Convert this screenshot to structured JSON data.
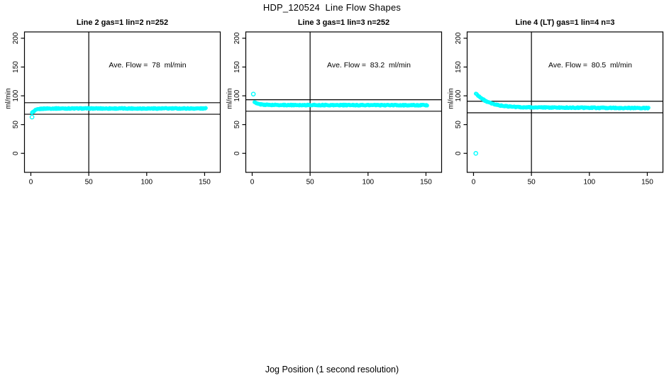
{
  "page": {
    "title": "HDP_120524  Line Flow Shapes",
    "xlabel": "Jog Position (1 second resolution)",
    "background_color": "#FFFFFF",
    "marker_color": "#00FFFF",
    "line_color": "#000000"
  },
  "chart_data": [
    {
      "type": "scatter",
      "title": "Line 2 gas=1 lin=2 n=252",
      "annotation": "Ave. Flow =  78  ml/min",
      "ave_flow_ml_min": 78,
      "n_label": 252,
      "ylabel": "ml/min",
      "x_ticks": [
        0,
        50,
        100,
        150
      ],
      "y_ticks": [
        0,
        50,
        100,
        150,
        200
      ],
      "xlim": [
        -5.5,
        163.5
      ],
      "ylim": [
        -33,
        211
      ],
      "grid": false,
      "vline_x": 50,
      "hlines": [
        88,
        68
      ],
      "x_range": [
        1,
        151
      ],
      "approx_point_count": 252,
      "profile": [
        [
          2,
          71.5
        ],
        [
          3,
          73.5
        ],
        [
          4,
          75
        ],
        [
          6,
          76.5
        ],
        [
          9,
          77.5
        ],
        [
          14,
          78
        ],
        [
          151,
          78
        ]
      ],
      "outliers": [
        [
          1,
          63
        ]
      ]
    },
    {
      "type": "scatter",
      "title": "Line 3 gas=1 lin=3 n=252",
      "annotation": "Ave. Flow =  83.2  ml/min",
      "ave_flow_ml_min": 83.2,
      "n_label": 252,
      "ylabel": "ml/min",
      "x_ticks": [
        0,
        50,
        100,
        150
      ],
      "y_ticks": [
        0,
        50,
        100,
        150,
        200
      ],
      "xlim": [
        -5.5,
        163.5
      ],
      "ylim": [
        -33,
        211
      ],
      "grid": false,
      "vline_x": 50,
      "hlines": [
        93.2,
        73.2
      ],
      "x_range": [
        2,
        151
      ],
      "approx_point_count": 252,
      "profile": [
        [
          2,
          89
        ],
        [
          3,
          87.5
        ],
        [
          4,
          86.5
        ],
        [
          6,
          85.5
        ],
        [
          9,
          84.8
        ],
        [
          14,
          84.2
        ],
        [
          25,
          84
        ],
        [
          151,
          83.6
        ]
      ],
      "outliers": [
        [
          1,
          103
        ]
      ]
    },
    {
      "type": "scatter",
      "title": "Line 4 (LT) gas=1 lin=4 n=3",
      "annotation": "Ave. Flow =  80.5  ml/min",
      "ave_flow_ml_min": 80.5,
      "n_label": 3,
      "ylabel": "ml/min",
      "x_ticks": [
        0,
        50,
        100,
        150
      ],
      "y_ticks": [
        0,
        50,
        100,
        150,
        200
      ],
      "xlim": [
        -5.5,
        163.5
      ],
      "ylim": [
        -33,
        211
      ],
      "grid": false,
      "vline_x": 50,
      "hlines": [
        90.5,
        70.5
      ],
      "x_range": [
        2,
        151
      ],
      "approx_point_count": 252,
      "profile": [
        [
          2,
          104
        ],
        [
          4,
          100.5
        ],
        [
          6,
          97
        ],
        [
          8,
          94
        ],
        [
          10,
          91.5
        ],
        [
          13,
          88.5
        ],
        [
          16,
          86.3
        ],
        [
          19,
          84.7
        ],
        [
          22,
          83.5
        ],
        [
          26,
          82.3
        ],
        [
          30,
          81.5
        ],
        [
          35,
          80.8
        ],
        [
          42,
          80.2
        ],
        [
          55,
          79.8
        ],
        [
          75,
          79.5
        ],
        [
          100,
          79.2
        ],
        [
          130,
          78.9
        ],
        [
          151,
          78.8
        ]
      ],
      "outliers": [
        [
          2,
          0
        ]
      ]
    }
  ]
}
